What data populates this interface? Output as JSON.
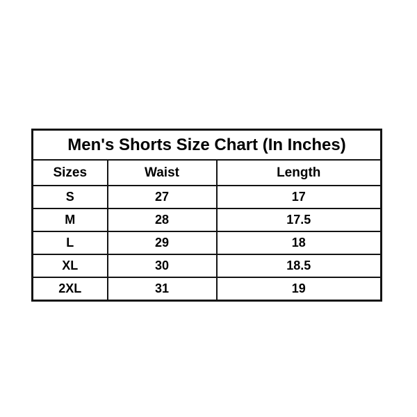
{
  "colors": {
    "background": "#ffffff",
    "border": "#131313",
    "text": "#000000"
  },
  "chart_data": {
    "type": "table",
    "title": "Men's Shorts Size Chart (In Inches)",
    "columns": [
      "Sizes",
      "Waist",
      "Length"
    ],
    "rows": [
      {
        "size": "S",
        "waist": "27",
        "length": "17"
      },
      {
        "size": "M",
        "waist": "28",
        "length": "17.5"
      },
      {
        "size": "L",
        "waist": "29",
        "length": "18"
      },
      {
        "size": "XL",
        "waist": "30",
        "length": "18.5"
      },
      {
        "size": "2XL",
        "waist": "31",
        "length": "19"
      }
    ]
  }
}
